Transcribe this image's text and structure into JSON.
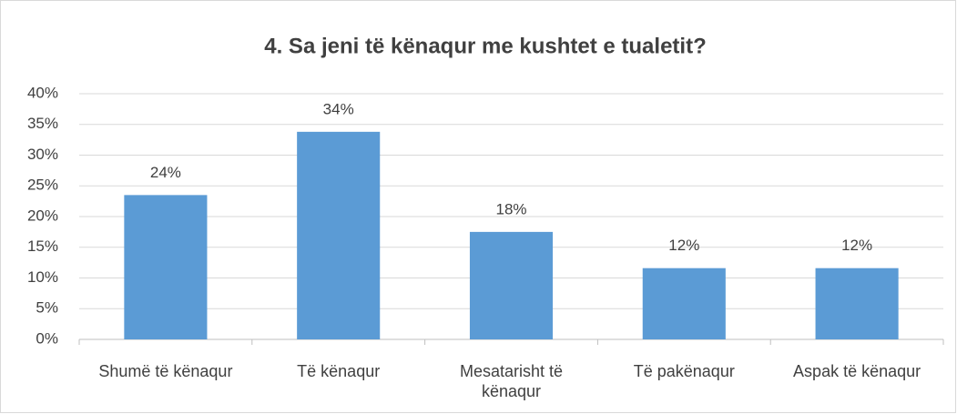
{
  "chart_data": {
    "type": "bar",
    "title": "4. Sa jeni të kënaqur me kushtet e tualetit?",
    "categories": [
      "Shumë të kënaqur",
      "Të kënaqur",
      "Mesatarisht të kënaqur",
      "Të pakënaqur",
      "Aspak të kënaqur"
    ],
    "values": [
      23.5,
      33.8,
      17.5,
      11.6,
      11.6
    ],
    "value_labels": [
      "24%",
      "34%",
      "18%",
      "12%",
      "12%"
    ],
    "color": "#5b9bd5",
    "ylim": [
      0,
      40
    ],
    "yticks": [
      {
        "value": 0,
        "label": "0%"
      },
      {
        "value": 5,
        "label": "5%"
      },
      {
        "value": 10,
        "label": "10%"
      },
      {
        "value": 15,
        "label": "15%"
      },
      {
        "value": 20,
        "label": "20%"
      },
      {
        "value": 25,
        "label": "25%"
      },
      {
        "value": 30,
        "label": "30%"
      },
      {
        "value": 35,
        "label": "35%"
      },
      {
        "value": 40,
        "label": "40%"
      }
    ],
    "grid": true
  }
}
